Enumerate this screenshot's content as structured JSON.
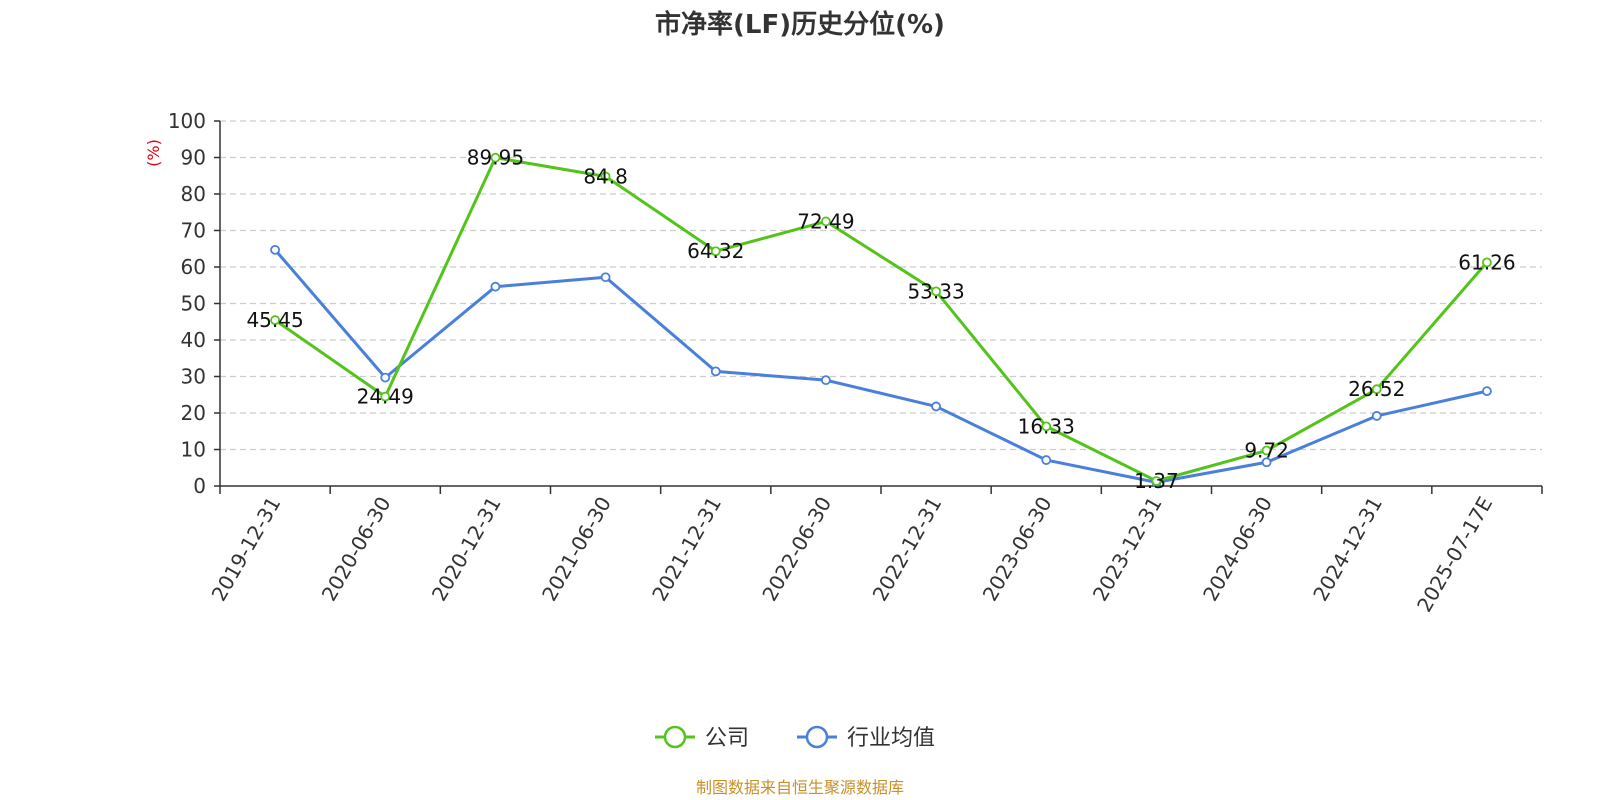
{
  "chart_data": {
    "type": "line",
    "title": "市净率(LF)历史分位(%)",
    "ylabel": "(%)",
    "xlabel": "",
    "ylim": [
      0,
      100
    ],
    "yticks": [
      0,
      10,
      20,
      30,
      40,
      50,
      60,
      70,
      80,
      90,
      100
    ],
    "grid": true,
    "legend_position": "bottom",
    "categories": [
      "2019-12-31",
      "2020-06-30",
      "2020-12-31",
      "2021-06-30",
      "2021-12-31",
      "2022-06-30",
      "2022-12-31",
      "2023-06-30",
      "2023-12-31",
      "2024-06-30",
      "2024-12-31",
      "2025-07-17E"
    ],
    "series": [
      {
        "name": "公司",
        "color": "#52c41a",
        "values": [
          45.45,
          24.49,
          89.95,
          84.8,
          64.32,
          72.49,
          53.33,
          16.33,
          1.37,
          9.72,
          26.52,
          61.26
        ],
        "data_labels": [
          "45.45",
          "24.49",
          "89.95",
          "84.8",
          "64.32",
          "72.49",
          "53.33",
          "16.33",
          "1.37",
          "9.72",
          "26.52",
          "61.26"
        ]
      },
      {
        "name": "行业均值",
        "color": "#4a7fdb",
        "values": [
          64.7,
          29.7,
          54.6,
          57.2,
          31.4,
          29.0,
          21.8,
          7.1,
          1.0,
          6.5,
          19.2,
          26.0
        ]
      }
    ],
    "source": "制图数据来自恒生聚源数据库"
  }
}
